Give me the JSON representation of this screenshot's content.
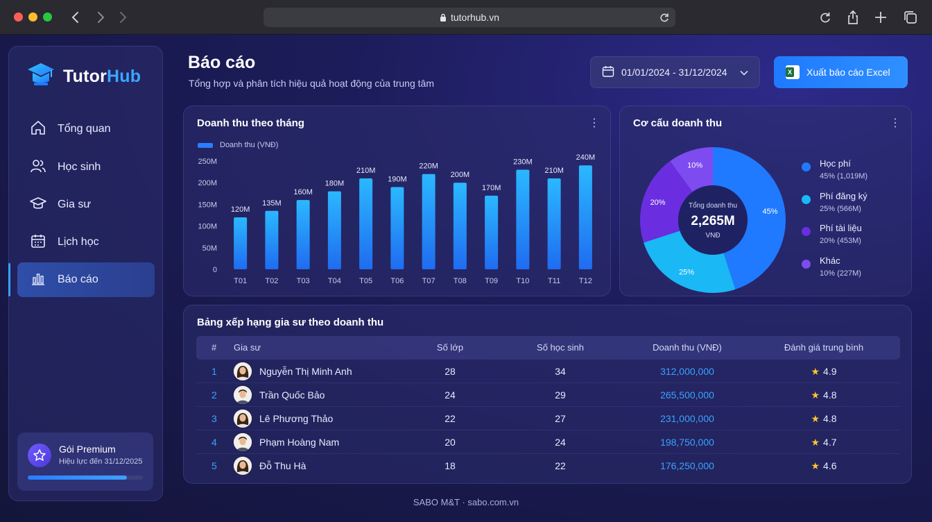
{
  "browser": {
    "url": "tutorhub.vn"
  },
  "brand": {
    "name_a": "Tutor",
    "name_b": "Hub"
  },
  "sidebar": {
    "items": [
      {
        "label": "Tổng quan",
        "icon": "home-icon"
      },
      {
        "label": "Học sinh",
        "icon": "users-icon"
      },
      {
        "label": "Gia sư",
        "icon": "graduation-cap-icon"
      },
      {
        "label": "Lịch học",
        "icon": "calendar-icon"
      },
      {
        "label": "Báo cáo",
        "icon": "bar-chart-icon",
        "active": true
      }
    ],
    "premium": {
      "title": "Gói Premium",
      "sub": "Hiệu lực đến 31/12/2025",
      "progress": 0.86
    }
  },
  "header": {
    "title": "Báo cáo",
    "subtitle": "Tổng hợp và phân tích hiệu quả hoạt động của trung tâm",
    "date_range": "01/01/2024 - 31/12/2024",
    "export_label": "Xuất báo cáo Excel"
  },
  "revenue_card": {
    "title": "Doanh thu theo tháng"
  },
  "structure_card": {
    "title": "Cơ cấu doanh thu",
    "center_label": "Tổng doanh thu",
    "center_value": "2,265M",
    "center_unit": "VNĐ",
    "legend": [
      {
        "name": "Học phí",
        "value": "45% (1,019M)",
        "color": "#1f7aff"
      },
      {
        "name": "Phí đăng ký",
        "value": "25% (566M)",
        "color": "#1ab8f5"
      },
      {
        "name": "Phí tài liệu",
        "value": "20% (453M)",
        "color": "#6a2ee0"
      },
      {
        "name": "Khác",
        "value": "10% (227M)",
        "color": "#7d4bf0"
      }
    ]
  },
  "chart_data": [
    {
      "type": "bar",
      "title": "Doanh thu theo tháng",
      "categories": [
        "T01",
        "T02",
        "T03",
        "T04",
        "T05",
        "T06",
        "T07",
        "T08",
        "T09",
        "T10",
        "T11",
        "T12"
      ],
      "series": [
        {
          "name": "Doanh thu (VNĐ)",
          "values": [
            120,
            135,
            160,
            180,
            210,
            190,
            220,
            200,
            170,
            230,
            210,
            240
          ]
        }
      ],
      "value_labels": [
        "120M",
        "135M",
        "160M",
        "180M",
        "210M",
        "190M",
        "220M",
        "200M",
        "170M",
        "230M",
        "210M",
        "240M"
      ],
      "yticks": [
        "0",
        "50M",
        "100M",
        "150M",
        "200M",
        "250M"
      ],
      "ylim": [
        0,
        250
      ],
      "grid": false,
      "legend": "top-left"
    },
    {
      "type": "pie",
      "title": "Cơ cấu doanh thu",
      "labels": [
        "Học phí",
        "Phí đăng ký",
        "Phí tài liệu",
        "Khác"
      ],
      "values": [
        45,
        25,
        20,
        10
      ],
      "value_labels": [
        "45%",
        "25%",
        "20%",
        "10%"
      ],
      "colors": [
        "#1f7aff",
        "#1ab8f5",
        "#6a2ee0",
        "#7d4bf0"
      ],
      "legend": "right"
    }
  ],
  "ranking": {
    "title": "Bảng xếp hạng gia sư theo doanh thu",
    "columns": [
      "#",
      "Gia sư",
      "Số lớp",
      "Số học sinh",
      "Doanh thu (VNĐ)",
      "Đánh giá trung bình"
    ],
    "rows": [
      {
        "rank": "1",
        "name": "Nguyễn Thị Minh Anh",
        "classes": "28",
        "students": "34",
        "revenue": "312,000,000",
        "rating": "4.9",
        "gender": "f"
      },
      {
        "rank": "2",
        "name": "Trần Quốc Bảo",
        "classes": "24",
        "students": "29",
        "revenue": "265,500,000",
        "rating": "4.8",
        "gender": "m"
      },
      {
        "rank": "3",
        "name": "Lê Phương Thảo",
        "classes": "22",
        "students": "27",
        "revenue": "231,000,000",
        "rating": "4.8",
        "gender": "f"
      },
      {
        "rank": "4",
        "name": "Phạm Hoàng Nam",
        "classes": "20",
        "students": "24",
        "revenue": "198,750,000",
        "rating": "4.7",
        "gender": "m"
      },
      {
        "rank": "5",
        "name": "Đỗ Thu Hà",
        "classes": "18",
        "students": "22",
        "revenue": "176,250,000",
        "rating": "4.6",
        "gender": "f"
      }
    ]
  },
  "footer": {
    "text": "SABO M&T · sabo.com.vn"
  }
}
